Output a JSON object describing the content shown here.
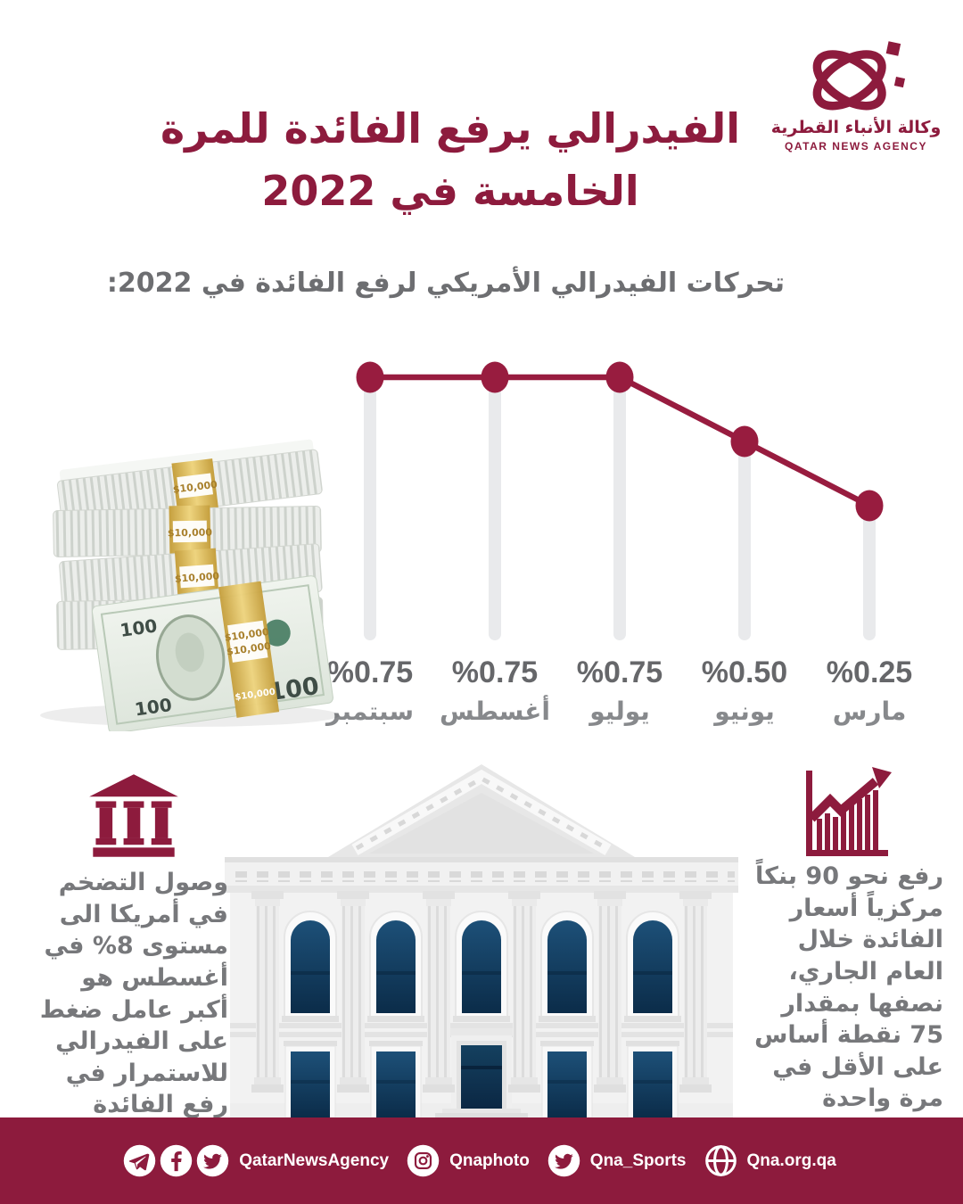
{
  "brand": {
    "logo_arabic": "وكالة الأنباء القطرية",
    "logo_english": "QATAR NEWS AGENCY",
    "maroon": "#8d1b3d"
  },
  "header": {
    "title": "الفيدرالي يرفع الفائدة للمرة\nالخامسة في 2022",
    "subtitle": "تحركات الفيدرالي الأمريكي لرفع الفائدة في 2022:"
  },
  "chart_data": {
    "type": "line",
    "title": "تحركات الفيدرالي الأمريكي لرفع الفائدة في 2022:",
    "direction": "rtl",
    "categories": [
      "سبتمبر",
      "أغسطس",
      "يوليو",
      "يونيو",
      "مارس"
    ],
    "values": [
      0.75,
      0.75,
      0.75,
      0.5,
      0.25
    ],
    "labels": [
      "%0.75",
      "%0.75",
      "%0.75",
      "%0.50",
      "%0.25"
    ],
    "ylim": [
      0,
      1
    ],
    "grid": false,
    "accent_color": "#981c3f",
    "bar_color": "#e9eaec"
  },
  "money_image": {
    "band_label": "$10,000",
    "bill_value": "100"
  },
  "facts": {
    "left": {
      "icon": "bank-columns",
      "text": "وصول التضخم\nفي أمريكا الى\nمستوى 8% في\nأغسطس هو\nأكبر عامل ضغط\nعلى الفيدرالي\nللاستمرار في\nرفع الفائدة"
    },
    "right": {
      "icon": "growth-chart",
      "text": "رفع نحو 90 بنكاً\nمركزياً أسعار\nالفائدة خلال\nالعام الجاري،\nنصفها بمقدار\n75 نقطة أساس\nعلى الأقل في\nمرة واحدة"
    }
  },
  "footer": {
    "background": "#8d1b3d",
    "items": [
      {
        "icons": [
          "telegram",
          "facebook",
          "twitter"
        ],
        "label": "QatarNewsAgency"
      },
      {
        "icons": [
          "instagram"
        ],
        "label": "Qnaphoto"
      },
      {
        "icons": [
          "twitter"
        ],
        "label": "Qna_Sports"
      },
      {
        "icons": [
          "globe"
        ],
        "label": "Qna.org.qa"
      }
    ]
  }
}
